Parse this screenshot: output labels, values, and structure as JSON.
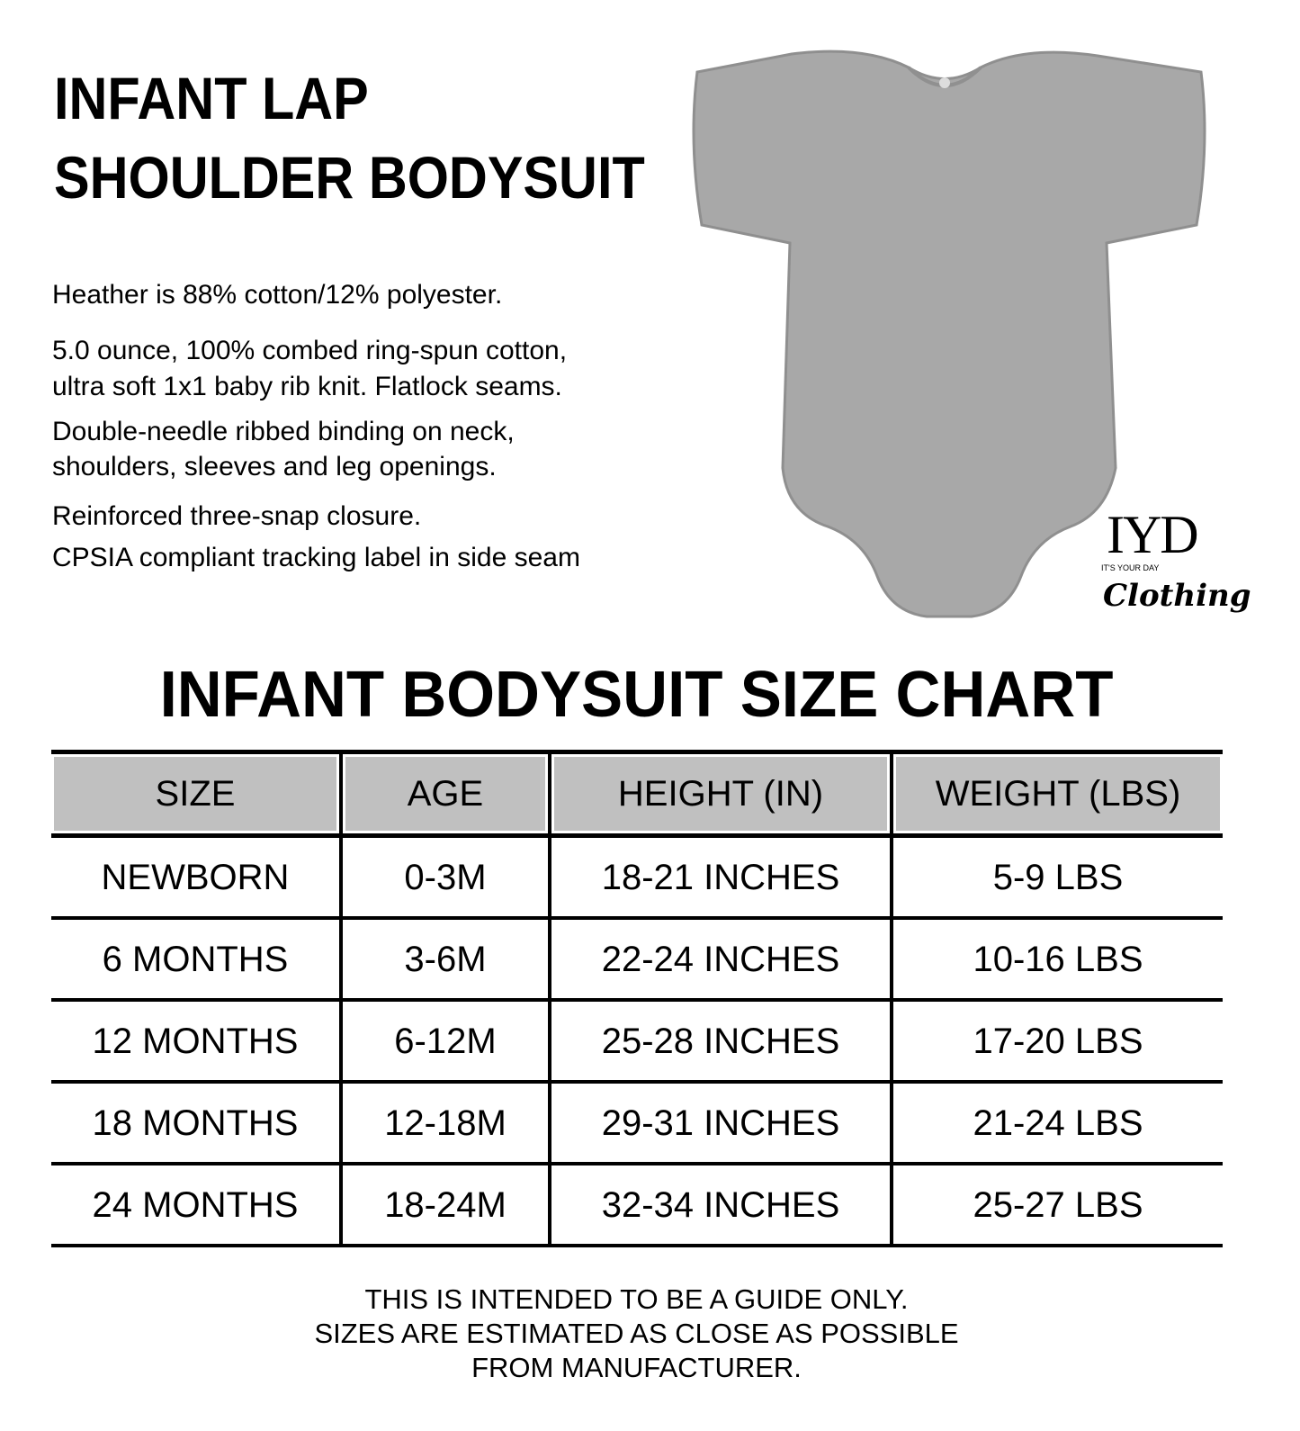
{
  "product": {
    "title_line1": "INFANT LAP",
    "title_line2": "SHOULDER BODYSUIT",
    "description": [
      "Heather is 88% cotton/12% polyester.",
      "5.0 ounce, 100% combed ring-spun cotton,",
      "ultra soft 1x1 baby rib knit. Flatlock seams.",
      "Double-needle ribbed binding on neck,",
      "shoulders, sleeves and leg openings.",
      "Reinforced three-snap closure.",
      "CPSIA compliant tracking label in side seam"
    ],
    "garment_color": "#a8a8a8"
  },
  "logo": {
    "main": "IYD",
    "small": "IT'S YOUR DAY",
    "script": "Clothing"
  },
  "size_chart": {
    "title": "INFANT BODYSUIT SIZE CHART",
    "header_color": "#c0c0c0",
    "columns": [
      "SIZE",
      "AGE",
      "HEIGHT (IN)",
      "WEIGHT (LBS)"
    ],
    "rows": [
      [
        "NEWBORN",
        "0-3M",
        "18-21 INCHES",
        "5-9 LBS"
      ],
      [
        "6 MONTHS",
        "3-6M",
        "22-24 INCHES",
        "10-16 LBS"
      ],
      [
        "12 MONTHS",
        "6-12M",
        "25-28 INCHES",
        "17-20 LBS"
      ],
      [
        "18 MONTHS",
        "12-18M",
        "29-31 INCHES",
        "21-24 LBS"
      ],
      [
        "24 MONTHS",
        "18-24M",
        "32-34 INCHES",
        "25-27 LBS"
      ]
    ]
  },
  "footer": [
    "THIS IS INTENDED TO BE A GUIDE ONLY.",
    "SIZES ARE ESTIMATED AS CLOSE AS POSSIBLE",
    "FROM MANUFACTURER."
  ]
}
